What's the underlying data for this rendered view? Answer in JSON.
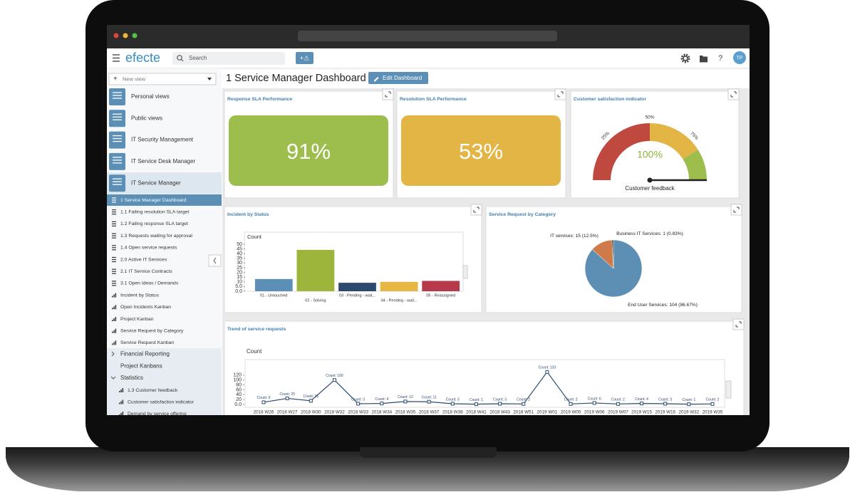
{
  "header": {
    "logo": "efecte",
    "search": "Search",
    "add_button": "+⚠",
    "help": "?",
    "user": "TP"
  },
  "page_title": "1 Service Manager Dashboard",
  "edit_button": "Edit Dashboard",
  "sidebar": {
    "new_view": "New view",
    "groups": [
      "Personal views",
      "Public views",
      "IT Security Management",
      "IT Service Desk Manager",
      "IT Service Manager"
    ],
    "views": [
      "1 Service Manager Dashboard",
      "1.1 Failing resolution SLA target",
      "1.2 Failing response SLA target",
      "1.3 Requests waiting for approval",
      "1.4 Open service requests",
      "2.0 Active IT Services",
      "2.1 IT Service Contracts",
      "3.1 Open Ideas / Demands",
      "Incident by Status",
      "Open Incidents Kanban",
      "Project Kanban",
      "Service Request by Category",
      "Service Request Kanban"
    ],
    "folders": [
      "Financial Reporting",
      "Project Kanbans",
      "Statistics"
    ],
    "statistics_views": [
      "1.3 Customer feedback",
      "Customer satisfaction indicator",
      "Demand by service offering"
    ]
  },
  "widgets": {
    "response_sla": {
      "title": "Response SLA Performance",
      "value": "91%",
      "color": "#9dbd4d"
    },
    "resolution_sla": {
      "title": "Resolution SLA Performance",
      "value": "53%",
      "color": "#e3b544"
    },
    "satisfaction": {
      "type": "gauge",
      "title": "Customer satisfaction indicator",
      "value": 100,
      "value_label": "100%",
      "caption": "Customer feedback",
      "range": [
        0,
        100
      ],
      "ticks": [
        {
          "value": 25,
          "label": "25%"
        },
        {
          "value": 50,
          "label": "50%"
        },
        {
          "value": 75,
          "label": "75%"
        }
      ],
      "bands": [
        {
          "from": 0,
          "to": 50,
          "color": "#c0493f"
        },
        {
          "from": 50,
          "to": 82,
          "color": "#e3b544"
        },
        {
          "from": 82,
          "to": 100,
          "color": "#9dbd4d"
        }
      ],
      "value_color": "#8db33a"
    },
    "incidents": {
      "type": "bar",
      "title": "Incident by Status",
      "y_label": "Count",
      "categories": [
        "01 - Untouched",
        "02 - Solving",
        "03 - Pending - wait...",
        "04 - Pending - wait...",
        "05 - Reassigned"
      ],
      "values": [
        13,
        44,
        9,
        10,
        11
      ],
      "colors": [
        "#5b8fb5",
        "#9db53a",
        "#2d4a6e",
        "#e6b843",
        "#b73a4b"
      ],
      "ylim": [
        0,
        50
      ],
      "yticks": [
        {
          "value": 0,
          "label": "0.0"
        },
        {
          "value": 5,
          "label": "5.0"
        },
        10,
        15,
        20,
        25,
        30,
        35,
        40,
        45,
        50
      ]
    },
    "requests_by_category": {
      "type": "pie",
      "title": "Service Request by Category",
      "values": [
        104,
        15,
        1
      ],
      "value_labels": [
        "End User Services: 104 (86.67%)",
        "IT services: 15 (12.5%)",
        "Business IT Services: 1 (0.83%)"
      ],
      "colors": [
        "#5d8fb5",
        "#cf7a4a",
        "#333333"
      ]
    },
    "trend": {
      "type": "line",
      "title": "Trend of service requests",
      "y_label": "Count",
      "categories": [
        "2018 W26",
        "2018 W27",
        "2018 W30",
        "2018 W32",
        "2018 W33",
        "2018 W34",
        "2018 W35",
        "2018 W37",
        "2018 W38",
        "2018 W41",
        "2018 W43",
        "2018 W51",
        "2019 W01",
        "2019 W05",
        "2019 W06",
        "2019 W07",
        "2019 W15",
        "2019 W16",
        "2019 W32",
        "2019 W35"
      ],
      "values": [
        9,
        25,
        15,
        100,
        3,
        4,
        12,
        11,
        3,
        1,
        3,
        2,
        133,
        2,
        6,
        2,
        4,
        3,
        1,
        2
      ],
      "value_labels": [
        "Count: 9",
        "Count: 25",
        "Count: 15",
        "Count: 100",
        "Count: 3",
        "Count: 4",
        "Count: 12",
        "Count: 11",
        "Count: 3",
        "Count: 1",
        "Count: 3",
        "Count: 2",
        "Count: 133",
        "Count: 2",
        "Count: 6",
        "Count: 2",
        "Count: 4",
        "Count: 3",
        "Count: 1",
        "Count: 2"
      ],
      "color": "#2d4a6e",
      "ylim": [
        0,
        140
      ],
      "yticks": [
        {
          "value": 0,
          "label": "0.0"
        },
        20,
        40,
        60,
        80,
        100,
        120
      ]
    }
  }
}
